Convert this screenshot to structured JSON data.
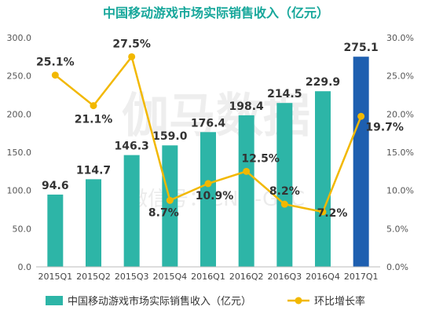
{
  "chart_data": {
    "type": "bar",
    "title": "中国移动游戏市场实际销售收入（亿元）",
    "categories": [
      "2015Q1",
      "2015Q2",
      "2015Q3",
      "2015Q4",
      "2016Q1",
      "2016Q2",
      "2016Q3",
      "2016Q4",
      "2017Q1"
    ],
    "series": [
      {
        "name": "中国移动游戏市场实际销售收入（亿元）",
        "type": "bar",
        "values": [
          94.6,
          114.7,
          146.3,
          159.0,
          176.4,
          198.4,
          214.5,
          229.9,
          275.1
        ],
        "labels": [
          "94.6",
          "114.7",
          "146.3",
          "159.0",
          "176.4",
          "198.4",
          "214.5",
          "229.9",
          "275.1"
        ]
      },
      {
        "name": "环比增长率",
        "type": "line",
        "axis": "right",
        "values": [
          25.1,
          21.1,
          27.5,
          8.7,
          10.9,
          12.5,
          8.2,
          7.2,
          19.7
        ],
        "labels": [
          "25.1%",
          "21.1%",
          "27.5%",
          "8.7%",
          "10.9%",
          "12.5%",
          "8.2%",
          "7.2%",
          "19.7%"
        ]
      }
    ],
    "ylim": [
      0,
      300
    ],
    "yticks": [
      "0.0",
      "50.0",
      "100.0",
      "150.0",
      "200.0",
      "250.0",
      "300.0"
    ],
    "y2lim": [
      0,
      30
    ],
    "y2ticks": [
      "0.0%",
      "5.0%",
      "10.0%",
      "15.0%",
      "20.0%",
      "25.0%",
      "30.0%"
    ],
    "grid": false,
    "legend_position": "bottom",
    "colors": {
      "bar": "#2db5a7",
      "bar_highlight": "#1e5fb0",
      "line": "#f2b800",
      "title": "#17a79b"
    },
    "watermark": [
      "伽马数据",
      "微信号：CNG-GPC"
    ]
  }
}
